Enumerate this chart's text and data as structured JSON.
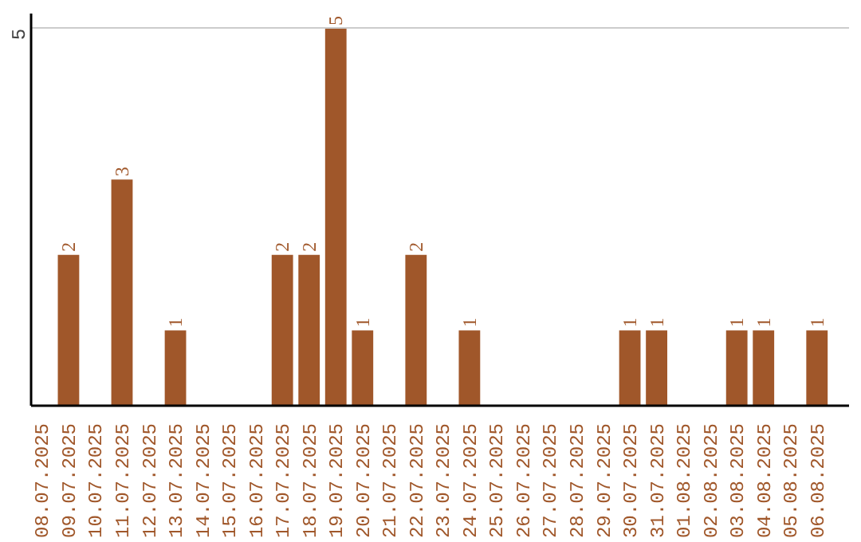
{
  "chart_data": {
    "type": "bar",
    "categories": [
      "08.07.2025",
      "09.07.2025",
      "10.07.2025",
      "11.07.2025",
      "12.07.2025",
      "13.07.2025",
      "14.07.2025",
      "15.07.2025",
      "16.07.2025",
      "17.07.2025",
      "18.07.2025",
      "19.07.2025",
      "20.07.2025",
      "21.07.2025",
      "22.07.2025",
      "23.07.2025",
      "24.07.2025",
      "25.07.2025",
      "26.07.2025",
      "27.07.2025",
      "28.07.2025",
      "29.07.2025",
      "30.07.2025",
      "31.07.2025",
      "01.08.2025",
      "02.08.2025",
      "03.08.2025",
      "04.08.2025",
      "05.08.2025",
      "06.08.2025"
    ],
    "values": [
      0,
      2,
      0,
      3,
      0,
      1,
      0,
      0,
      0,
      2,
      2,
      5,
      1,
      0,
      2,
      0,
      1,
      0,
      0,
      0,
      0,
      0,
      1,
      1,
      0,
      0,
      1,
      1,
      0,
      1
    ],
    "value_labels": [
      null,
      "2",
      null,
      "3",
      null,
      "1",
      null,
      null,
      null,
      "2",
      "2",
      "5",
      "1",
      null,
      "2",
      null,
      "1",
      null,
      null,
      null,
      null,
      null,
      "1",
      "1",
      null,
      null,
      "1",
      "1",
      null,
      "1"
    ],
    "color": "#a0572a",
    "ylim": [
      0,
      5.2
    ],
    "yticks": [
      5
    ],
    "grid": "y"
  }
}
